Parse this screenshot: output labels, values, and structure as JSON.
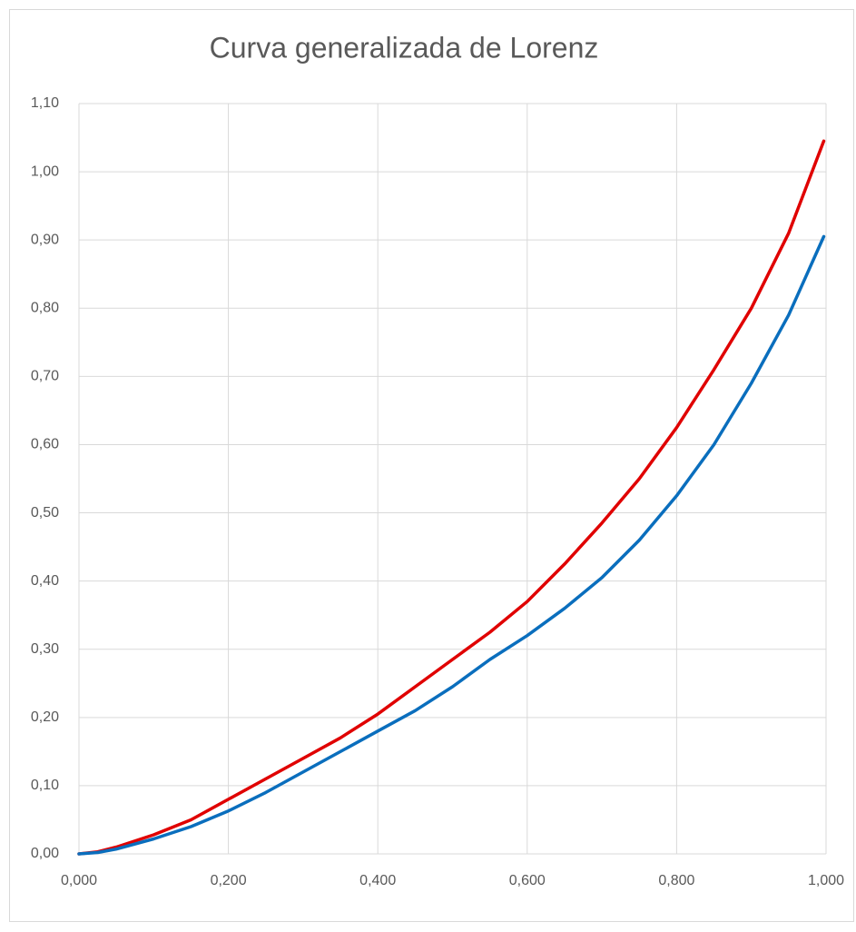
{
  "chart_data": {
    "type": "line",
    "title": "Curva generalizada de Lorenz",
    "x": [
      0,
      0.025,
      0.05,
      0.1,
      0.15,
      0.2,
      0.25,
      0.3,
      0.35,
      0.4,
      0.45,
      0.5,
      0.55,
      0.6,
      0.65,
      0.7,
      0.75,
      0.8,
      0.85,
      0.9,
      0.95,
      0.997
    ],
    "series": [
      {
        "color": "#e00000",
        "values": [
          0,
          0.003,
          0.01,
          0.028,
          0.05,
          0.08,
          0.11,
          0.14,
          0.17,
          0.205,
          0.245,
          0.285,
          0.325,
          0.37,
          0.425,
          0.485,
          0.55,
          0.625,
          0.71,
          0.8,
          0.91,
          1.045
        ]
      },
      {
        "color": "#0a6ebd",
        "values": [
          0,
          0.002,
          0.007,
          0.022,
          0.04,
          0.063,
          0.09,
          0.12,
          0.15,
          0.18,
          0.21,
          0.245,
          0.285,
          0.32,
          0.36,
          0.405,
          0.46,
          0.525,
          0.6,
          0.69,
          0.79,
          0.905
        ]
      }
    ],
    "xlim": [
      0,
      1
    ],
    "xticks": [
      {
        "value": 0,
        "label": "0,000"
      },
      {
        "value": 0.2,
        "label": "0,200"
      },
      {
        "value": 0.4,
        "label": "0,400"
      },
      {
        "value": 0.6,
        "label": "0,600"
      },
      {
        "value": 0.8,
        "label": "0,800"
      },
      {
        "value": 1,
        "label": "1,000"
      }
    ],
    "ylim": [
      0,
      1.1
    ],
    "yticks": [
      {
        "value": 0,
        "label": "0,00"
      },
      {
        "value": 0.1,
        "label": "0,10"
      },
      {
        "value": 0.2,
        "label": "0,20"
      },
      {
        "value": 0.3,
        "label": "0,30"
      },
      {
        "value": 0.4,
        "label": "0,40"
      },
      {
        "value": 0.5,
        "label": "0,50"
      },
      {
        "value": 0.6,
        "label": "0,60"
      },
      {
        "value": 0.7,
        "label": "0,70"
      },
      {
        "value": 0.8,
        "label": "0,80"
      },
      {
        "value": 0.9,
        "label": "0,90"
      },
      {
        "value": 1,
        "label": "1,00"
      },
      {
        "value": 1.1,
        "label": "1,10"
      }
    ],
    "grid": true
  }
}
